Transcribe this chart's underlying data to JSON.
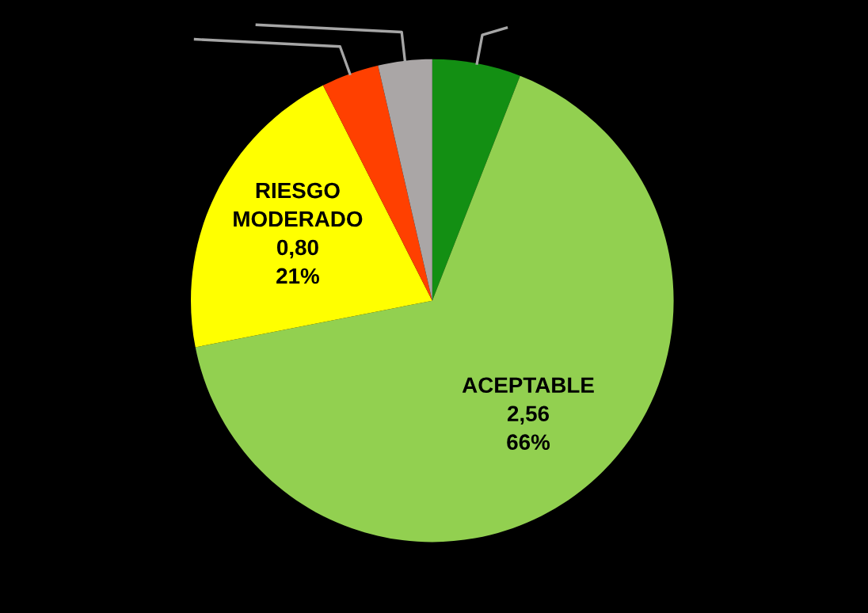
{
  "chart_data": {
    "type": "pie",
    "categories": [
      null,
      "ACEPTABLE",
      "RIESGO MODERADO",
      null,
      null
    ],
    "values": [
      0.23,
      2.56,
      0.8,
      0.15,
      0.14
    ],
    "colors": [
      "#138f13",
      "#92d050",
      "#ffff00",
      "#ff4000",
      "#aaa6a6"
    ],
    "value_labels": [
      null,
      "2,56\n66%",
      "0,80\n21%",
      null,
      null
    ]
  }
}
